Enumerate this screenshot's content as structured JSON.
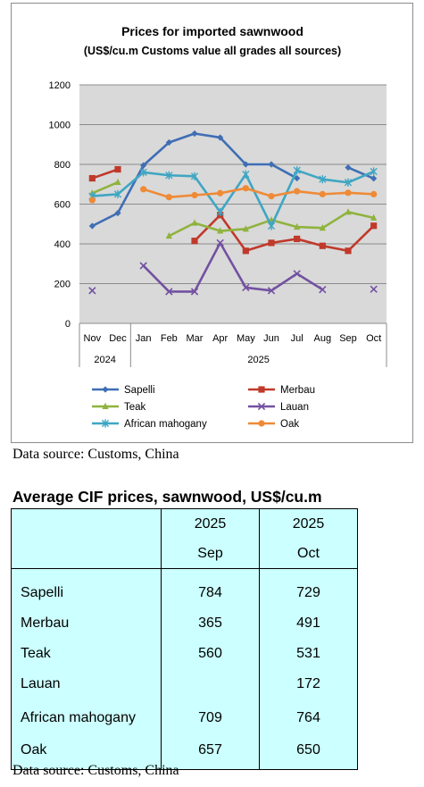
{
  "chart_data": {
    "type": "line",
    "title": "Prices for imported sawnwood",
    "subtitle": "(US$/cu.m Customs value all grades all sources)",
    "categories": [
      "Nov",
      "Dec",
      "Jan",
      "Feb",
      "Mar",
      "Apr",
      "May",
      "Jun",
      "Jul",
      "Aug",
      "Sep",
      "Oct"
    ],
    "year_groups": [
      {
        "label": "2024",
        "start": 0,
        "end": 1
      },
      {
        "label": "2025",
        "start": 2,
        "end": 11
      }
    ],
    "ylim": [
      0,
      1200
    ],
    "yticks": [
      0,
      200,
      400,
      600,
      800,
      1000,
      1200
    ],
    "grid": true,
    "legend_position": "bottom",
    "series": [
      {
        "name": "Sapelli",
        "color": "#3f6eb4",
        "marker": "diamond",
        "values": [
          490,
          555,
          795,
          910,
          955,
          935,
          800,
          800,
          730,
          null,
          784,
          729
        ]
      },
      {
        "name": "Merbau",
        "color": "#c0392b",
        "marker": "square",
        "values": [
          730,
          775,
          null,
          null,
          415,
          545,
          365,
          405,
          425,
          390,
          365,
          491
        ]
      },
      {
        "name": "Teak",
        "color": "#8fb33e",
        "marker": "triangle",
        "values": [
          655,
          710,
          null,
          440,
          505,
          465,
          475,
          520,
          485,
          480,
          560,
          531
        ]
      },
      {
        "name": "Lauan",
        "color": "#7351a1",
        "marker": "x",
        "values": [
          165,
          null,
          290,
          160,
          160,
          405,
          180,
          165,
          250,
          170,
          null,
          172
        ]
      },
      {
        "name": "African mahogany",
        "color": "#3fa6c3",
        "marker": "star",
        "values": [
          640,
          650,
          760,
          745,
          740,
          560,
          750,
          490,
          770,
          725,
          709,
          764
        ]
      },
      {
        "name": "Oak",
        "color": "#ef8a36",
        "marker": "circle",
        "values": [
          620,
          null,
          675,
          635,
          645,
          655,
          680,
          640,
          665,
          650,
          657,
          650
        ]
      }
    ]
  },
  "source_top": "Data source: Customs, China",
  "table": {
    "title": "Average CIF prices, sawnwood, US$/cu.m",
    "headers": [
      {
        "year": "2025",
        "month": "Sep"
      },
      {
        "year": "2025",
        "month": "Oct"
      }
    ],
    "rows": [
      {
        "name": "Sapelli",
        "sep": "784",
        "oct": "729"
      },
      {
        "name": "Merbau",
        "sep": "365",
        "oct": "491"
      },
      {
        "name": "Teak",
        "sep": "560",
        "oct": "531"
      },
      {
        "name": "Lauan",
        "sep": "",
        "oct": "172"
      },
      {
        "name": "African mahogany",
        "sep": "709",
        "oct": "764"
      },
      {
        "name": "Oak",
        "sep": "657",
        "oct": "650"
      }
    ]
  },
  "source_bottom": "Data source: Customs, China"
}
